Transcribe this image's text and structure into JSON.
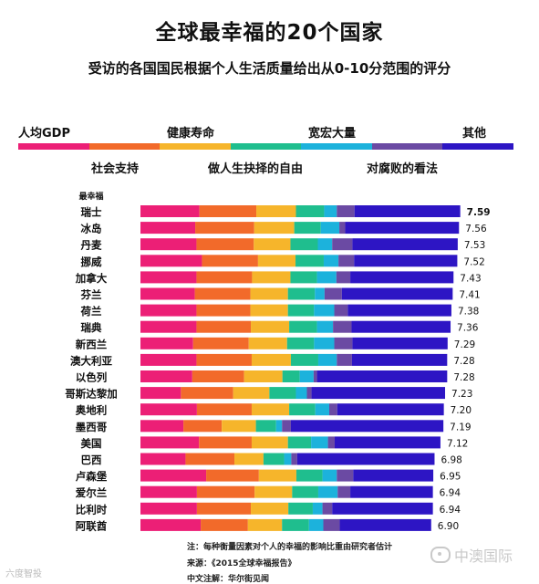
{
  "header": {
    "title": "全球最幸福的20个国家",
    "subtitle": "受访的各国国民根据个人生活质量给出从0-10分范围的评分"
  },
  "legend": {
    "top_labels": [
      "人均GDP",
      "健康寿命",
      "宽宏大量",
      "其他"
    ],
    "bottom_labels": [
      "社会支持",
      "做人生抉择的自由",
      "对腐败的看法"
    ]
  },
  "rank_heading": "最幸福",
  "colors": {
    "gdp": "#ec1f76",
    "social": "#f26a2a",
    "health": "#f6b52b",
    "freedom": "#1fbe8e",
    "generosity": "#1cb2dc",
    "corruption": "#6b4aa3",
    "other": "#2d15c4"
  },
  "chart_data": {
    "type": "bar",
    "orientation": "horizontal",
    "stacked": true,
    "categories": [
      "瑞士",
      "冰岛",
      "丹麦",
      "挪威",
      "加拿大",
      "芬兰",
      "荷兰",
      "瑞典",
      "新西兰",
      "澳大利亚",
      "以色列",
      "哥斯达黎加",
      "奥地利",
      "墨西哥",
      "美国",
      "巴西",
      "卢森堡",
      "爱尔兰",
      "比利时",
      "阿联酋"
    ],
    "value_labels": [
      "7.59",
      "7.56",
      "7.53",
      "7.52",
      "7.43",
      "7.41",
      "7.38",
      "7.36",
      "7.29",
      "7.28",
      "7.28",
      "7.23",
      "7.20",
      "7.19",
      "7.12",
      "6.98",
      "6.95",
      "6.94",
      "6.94",
      "6.90"
    ],
    "totals": [
      7.59,
      7.56,
      7.53,
      7.52,
      7.43,
      7.41,
      7.38,
      7.36,
      7.29,
      7.28,
      7.28,
      7.23,
      7.2,
      7.19,
      7.12,
      6.98,
      6.95,
      6.94,
      6.94,
      6.9
    ],
    "series": [
      {
        "name": "人均GDP",
        "values": [
          1.4,
          1.3,
          1.33,
          1.46,
          1.33,
          1.29,
          1.33,
          1.33,
          1.25,
          1.33,
          1.23,
          0.96,
          1.34,
          1.02,
          1.39,
          1.07,
          1.56,
          1.34,
          1.34,
          1.43
        ]
      },
      {
        "name": "社会支持",
        "values": [
          1.35,
          1.4,
          1.36,
          1.33,
          1.32,
          1.32,
          1.28,
          1.29,
          1.32,
          1.31,
          1.23,
          1.24,
          1.3,
          0.91,
          1.25,
          1.16,
          1.25,
          1.37,
          1.28,
          1.12
        ]
      },
      {
        "name": "健康寿命",
        "values": [
          0.94,
          0.95,
          0.87,
          0.89,
          0.91,
          0.89,
          0.89,
          0.91,
          0.91,
          0.93,
          0.91,
          0.86,
          0.89,
          0.81,
          0.86,
          0.69,
          0.89,
          0.89,
          0.89,
          0.81
        ]
      },
      {
        "name": "做人生抉择的自由",
        "values": [
          0.67,
          0.63,
          0.65,
          0.67,
          0.63,
          0.64,
          0.62,
          0.66,
          0.64,
          0.65,
          0.41,
          0.63,
          0.62,
          0.48,
          0.55,
          0.49,
          0.62,
          0.62,
          0.58,
          0.64
        ]
      },
      {
        "name": "宽宏大量",
        "values": [
          0.3,
          0.44,
          0.34,
          0.35,
          0.46,
          0.23,
          0.48,
          0.38,
          0.48,
          0.44,
          0.33,
          0.26,
          0.33,
          0.14,
          0.4,
          0.17,
          0.34,
          0.46,
          0.23,
          0.34
        ]
      },
      {
        "name": "对腐败的看法",
        "values": [
          0.42,
          0.14,
          0.48,
          0.37,
          0.33,
          0.41,
          0.32,
          0.44,
          0.43,
          0.36,
          0.08,
          0.11,
          0.19,
          0.21,
          0.16,
          0.14,
          0.39,
          0.3,
          0.23,
          0.39
        ]
      },
      {
        "name": "其他",
        "values": [
          2.51,
          2.7,
          2.5,
          2.45,
          2.45,
          2.63,
          2.46,
          2.35,
          2.26,
          2.26,
          3.09,
          3.17,
          2.53,
          3.62,
          2.51,
          3.26,
          1.9,
          1.96,
          2.39,
          2.17
        ]
      }
    ]
  },
  "notes": {
    "note": "注：每种衡量因素对个人的幸福的影响比重由研究者估计",
    "source": "来源：《2015全球幸福报告》",
    "translation": "中文注解：华尔街见闻"
  },
  "watermarks": {
    "left": "六度智投",
    "right": "中澳国际"
  }
}
